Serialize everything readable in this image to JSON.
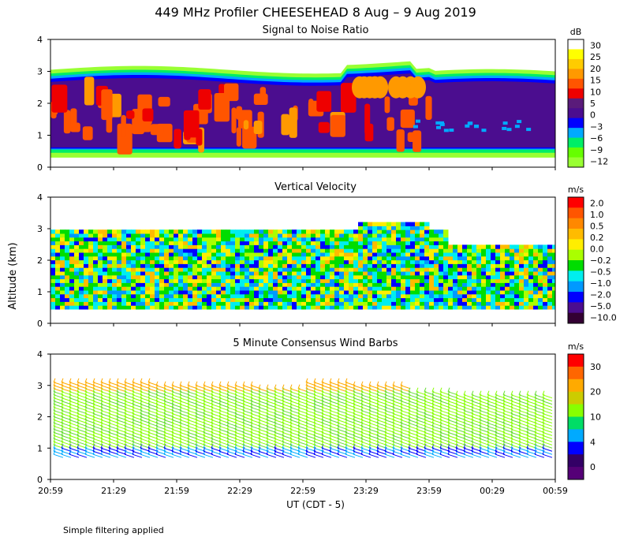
{
  "title": "449 MHz Profiler CHEESEHEAD  8 Aug –  9 Aug 2019",
  "ylabel": "Altitude (km)",
  "xlabel": "UT  (CDT - 5)",
  "note": "Simple filtering applied",
  "x_ticks": [
    "20:59",
    "21:29",
    "21:59",
    "22:29",
    "22:59",
    "23:29",
    "23:59",
    "00:29",
    "00:59"
  ],
  "y_ticks": [
    "0",
    "1",
    "2",
    "3",
    "4"
  ],
  "chart_data": [
    {
      "type": "heatmap",
      "title": "Signal to Noise Ratio",
      "ylim": [
        0,
        4
      ],
      "colorbar": {
        "unit": "dB",
        "labels": [
          "30",
          "25",
          "20",
          "15",
          "10",
          "5",
          "0",
          "−3",
          "−6",
          "−9",
          "−12"
        ],
        "colors": [
          "#ffffff",
          "#ffff00",
          "#ffcc00",
          "#ff9900",
          "#ff5500",
          "#ee0000",
          "#5a1b7a",
          "#4b0d8f",
          "#0000ff",
          "#00aaff",
          "#00ee66",
          "#66ff00",
          "#99ff33"
        ]
      },
      "layers": [
        {
          "name": "low edge",
          "color": "#99ff33",
          "range": [
            0.3,
            0.55
          ]
        },
        {
          "name": "lower band",
          "color": "#00ee66",
          "range": [
            0.5,
            0.65
          ]
        },
        {
          "name": "core",
          "color": "#5a1b7a",
          "range": [
            0.6,
            2.6
          ]
        },
        {
          "name": "upper band",
          "color": "#4b0d8f",
          "range": [
            2.4,
            2.8
          ]
        },
        {
          "name": "top edge",
          "color": "#99ff33",
          "range": [
            2.8,
            3.2
          ]
        }
      ]
    },
    {
      "type": "heatmap",
      "title": "Vertical Velocity",
      "ylim": [
        0,
        4
      ],
      "colorbar": {
        "unit": "m/s",
        "labels": [
          "2.0",
          "1.0",
          "0.5",
          "0.2",
          "0.0",
          "−0.2",
          "−0.5",
          "−1.0",
          "−2.0",
          "−5.0",
          "−10.0"
        ],
        "colors": [
          "#ff0000",
          "#ff5500",
          "#ff8800",
          "#ffbb00",
          "#ffee00",
          "#aaff00",
          "#00dd00",
          "#00eeee",
          "#0099ff",
          "#0000ff",
          "#4b0d8f",
          "#330033"
        ]
      },
      "data_range": [
        0.45,
        2.9
      ]
    },
    {
      "type": "wind-barbs",
      "title": "5 Minute Consensus Wind Barbs",
      "ylim": [
        0,
        4
      ],
      "colorbar": {
        "unit": "m/s",
        "labels": [
          "30",
          "20",
          "10",
          "4",
          "0"
        ],
        "colors": [
          "#ff0000",
          "#ff6600",
          "#ffaa00",
          "#cccc00",
          "#88ff00",
          "#00dd66",
          "#00aaff",
          "#0000ff",
          "#330066",
          "#550077"
        ]
      },
      "data_range": [
        0.8,
        3.4
      ]
    }
  ]
}
